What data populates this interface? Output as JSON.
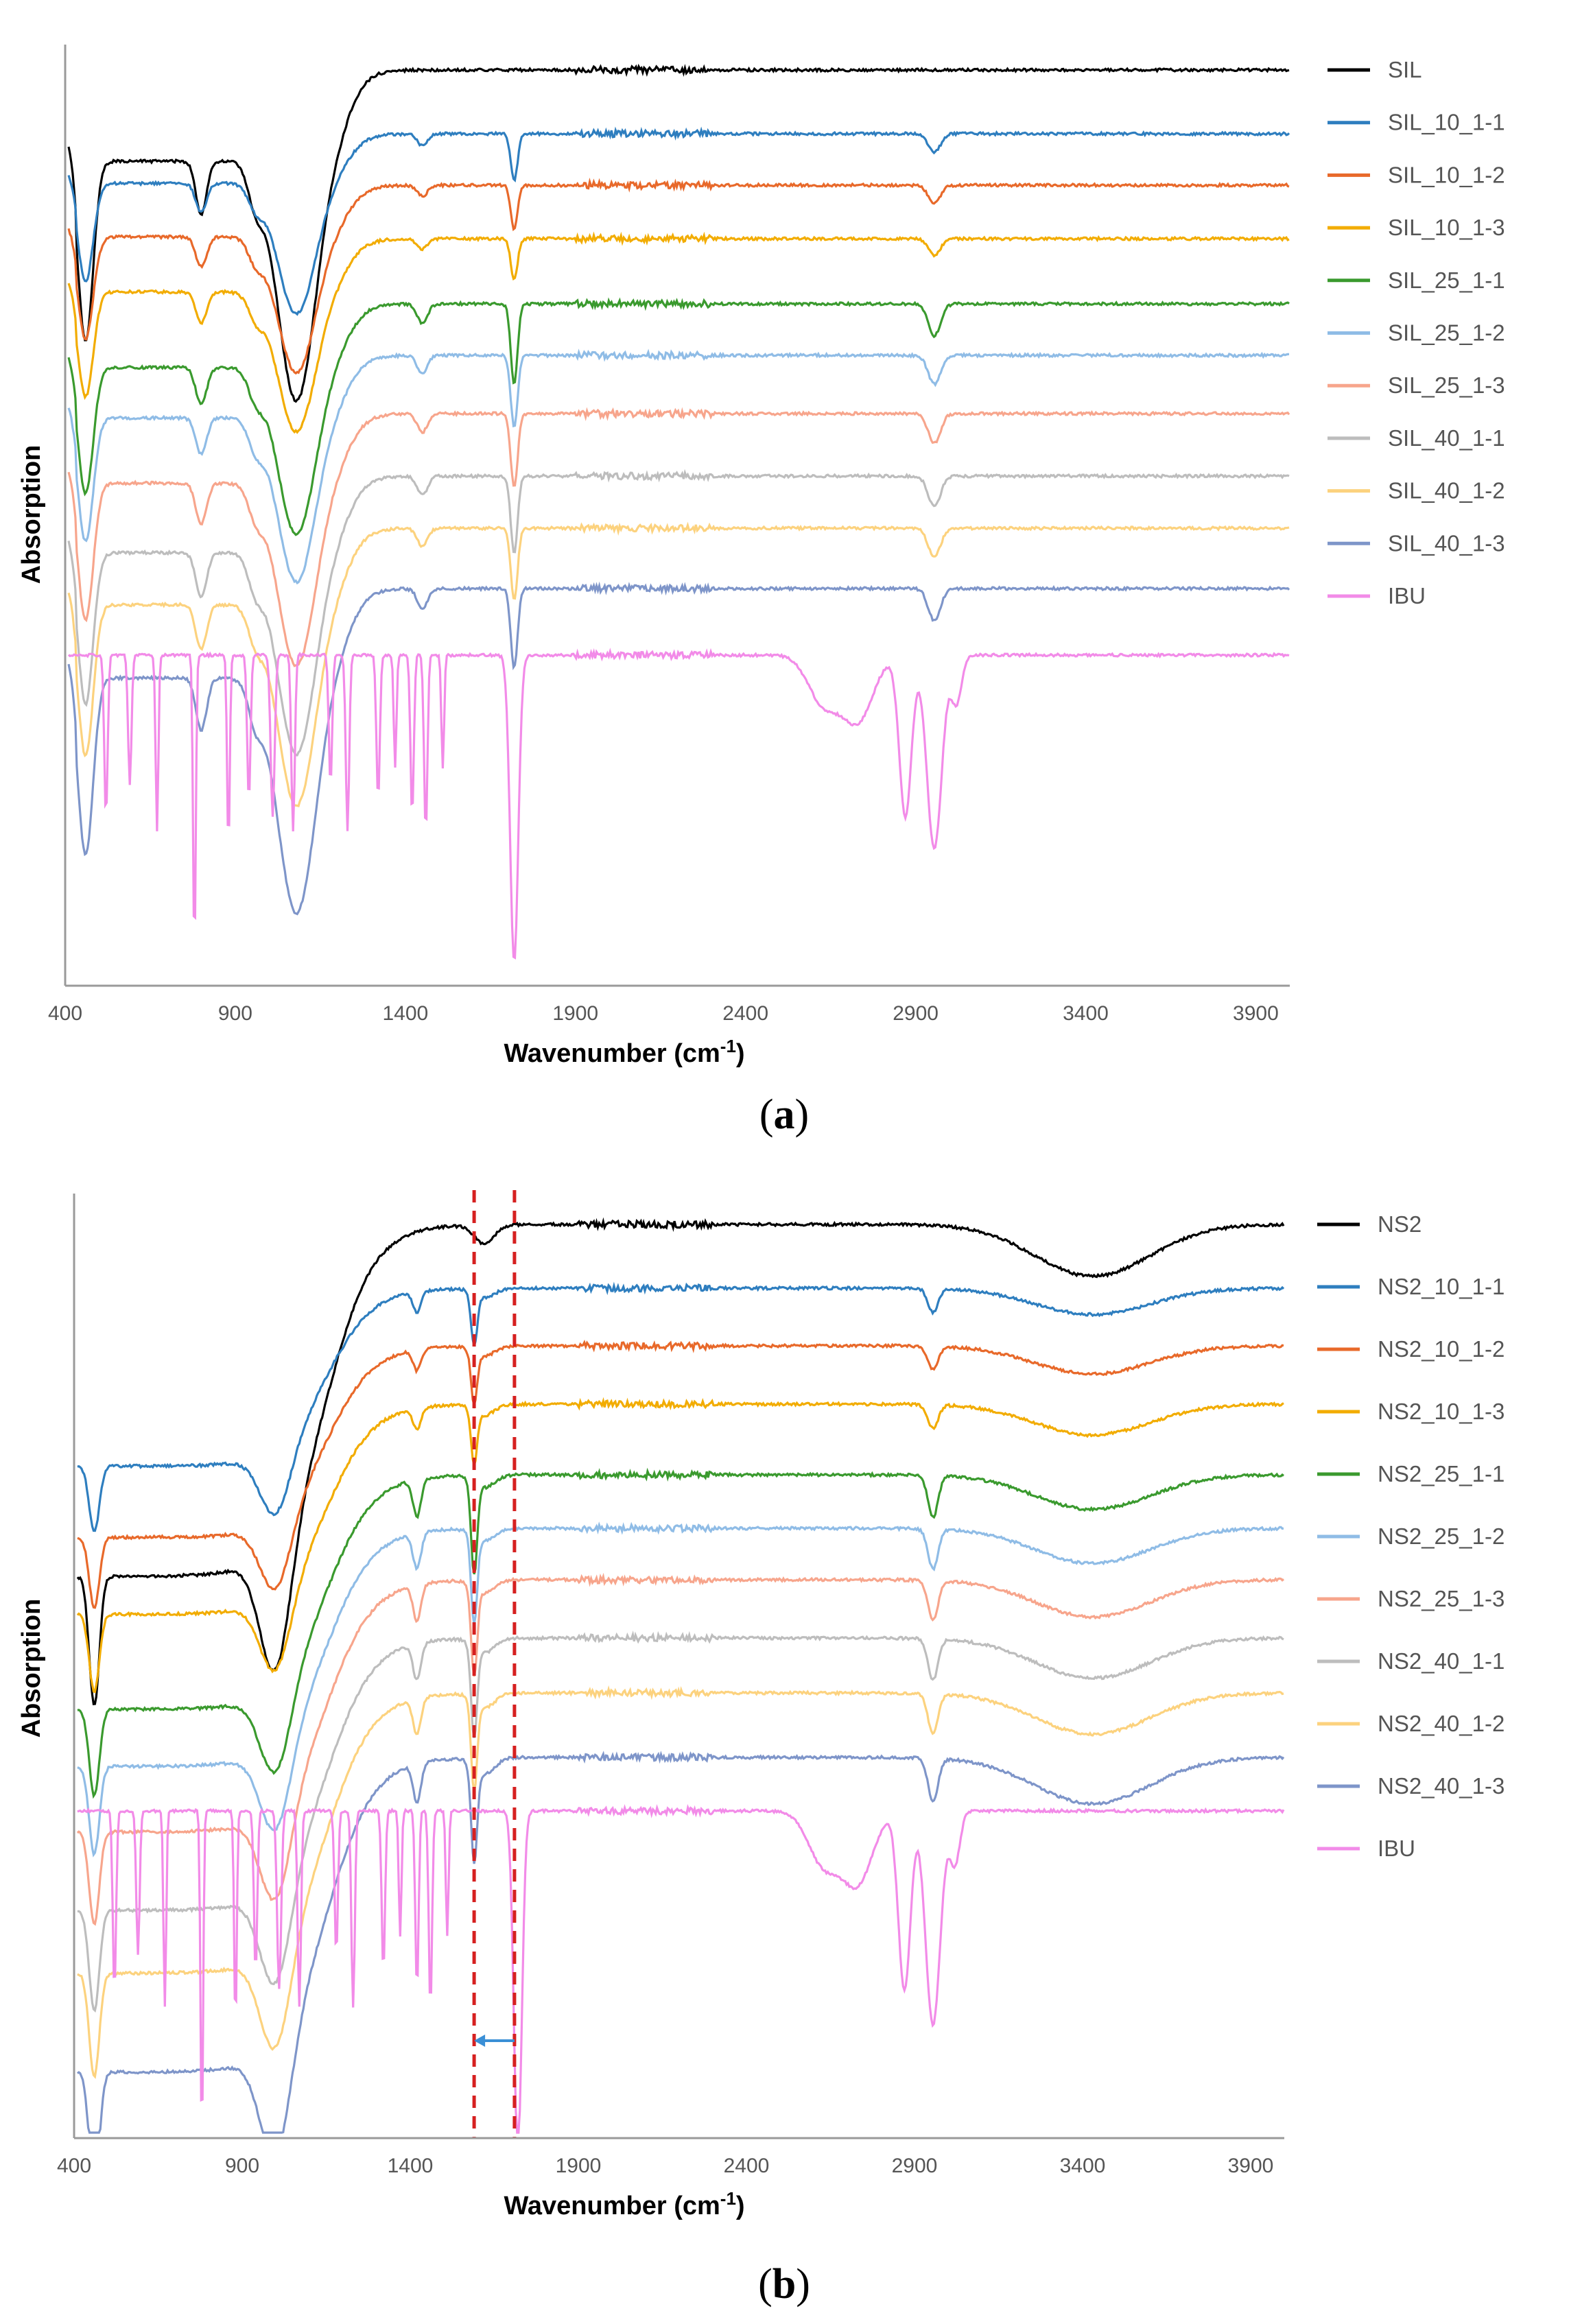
{
  "chart_data": [
    {
      "type": "line",
      "panel_label": "a",
      "xlabel": "Wavenumber (cm",
      "xlabel_sup": "-1",
      "xlabel_tail": ")",
      "ylabel": "Absorption",
      "xlim": [
        400,
        4000
      ],
      "xticks": [
        "400",
        "900",
        "1400",
        "1900",
        "2400",
        "2900",
        "3400",
        "3900"
      ],
      "series": [
        {
          "name": "SIL",
          "color": "#000000"
        },
        {
          "name": "SIL_10_1-1",
          "color": "#2E7EBF"
        },
        {
          "name": "SIL_10_1-2",
          "color": "#E8692A"
        },
        {
          "name": "SIL_10_1-3",
          "color": "#F2AC00"
        },
        {
          "name": "SIL_25_1-1",
          "color": "#3A9A2E"
        },
        {
          "name": "SIL_25_1-2",
          "color": "#8FBCE6"
        },
        {
          "name": "SIL_25_1-3",
          "color": "#F7A58C"
        },
        {
          "name": "SIL_40_1-1",
          "color": "#BDBDBD"
        },
        {
          "name": "SIL_40_1-2",
          "color": "#FCD27E"
        },
        {
          "name": "SIL_40_1-3",
          "color": "#7E95C9"
        },
        {
          "name": "IBU",
          "color": "#F28BE8"
        }
      ]
    },
    {
      "type": "line",
      "panel_label": "b",
      "xlabel": "Wavenumber (cm",
      "xlabel_sup": "-1",
      "xlabel_tail": ")",
      "ylabel": "Absorption",
      "xlim": [
        400,
        4000
      ],
      "xticks": [
        "400",
        "900",
        "1400",
        "1900",
        "2400",
        "2900",
        "3400",
        "3900"
      ],
      "marker_lines_x": [
        1590,
        1710
      ],
      "shift_arrow": {
        "from": 1710,
        "to": 1590
      },
      "series": [
        {
          "name": "NS2",
          "color": "#000000"
        },
        {
          "name": "NS2_10_1-1",
          "color": "#2E7EBF"
        },
        {
          "name": "NS2_10_1-2",
          "color": "#E8692A"
        },
        {
          "name": "NS2_10_1-3",
          "color": "#F2AC00"
        },
        {
          "name": "NS2_25_1-1",
          "color": "#3A9A2E"
        },
        {
          "name": "NS2_25_1-2",
          "color": "#8FBCE6"
        },
        {
          "name": "NS2_25_1-3",
          "color": "#F7A58C"
        },
        {
          "name": "NS2_40_1-1",
          "color": "#BDBDBD"
        },
        {
          "name": "NS2_40_1-2",
          "color": "#FCD27E"
        },
        {
          "name": "NS2_40_1-3",
          "color": "#7E95C9"
        },
        {
          "name": "IBU",
          "color": "#F28BE8"
        }
      ]
    }
  ]
}
